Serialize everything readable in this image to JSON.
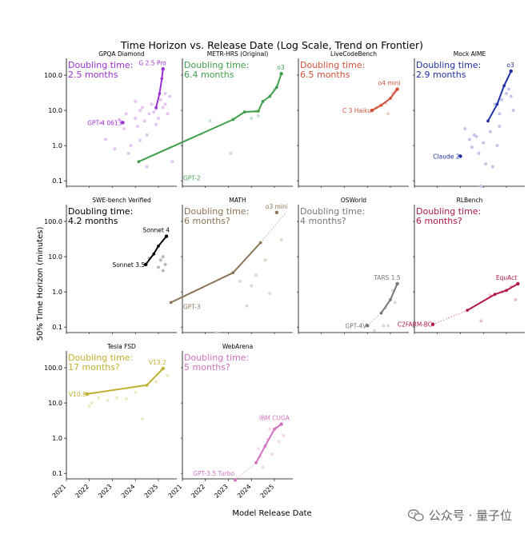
{
  "figure": {
    "title": "Time Horizon vs. Release Date (Log Scale, Trend on Frontier)",
    "xlabel": "Model Release Date",
    "ylabel": "50% Time Horizon (minutes)",
    "watermark": "公众号 · 量子位"
  },
  "chart_data": [
    {
      "type": "scatter",
      "title": "GPQA Diamond",
      "color": "#9b30d0",
      "doubling_label": "Doubling time:",
      "doubling_value": "2.5 months",
      "frontier_x": [
        2024.9,
        2025.05,
        2025.15,
        2025.2
      ],
      "frontier_y": [
        12,
        30,
        80,
        150
      ],
      "points_x": [
        2022.5,
        2022.7,
        2023.3,
        2023.5,
        2023.6,
        2023.8,
        2024.0,
        2024.1,
        2024.2,
        2024.3,
        2024.4,
        2024.5,
        2024.6,
        2024.7,
        2024.8,
        2024.9,
        2025.0,
        2025.1,
        2025.2,
        2025.3,
        2025.4,
        2025.5,
        2023.1,
        2024.5,
        2023.7,
        2024.9,
        2025.3,
        2024.2,
        2025.6,
        2024.0
      ],
      "points_y": [
        4.5,
        1.5,
        5.5,
        3.0,
        8.0,
        1.0,
        6.0,
        3.5,
        10.0,
        12.0,
        5.0,
        2.0,
        8.0,
        15.0,
        9.0,
        11.0,
        6.0,
        20.0,
        12.0,
        30.0,
        8.0,
        25.0,
        0.8,
        0.25,
        0.6,
        4.0,
        15.0,
        1.4,
        0.35,
        18.0
      ],
      "annotations": [
        {
          "text": "G 2.5 Pro",
          "x": 2025.2,
          "y": 150
        },
        {
          "text": "GPT-4 0613",
          "x": 2023.45,
          "y": 4.5
        }
      ],
      "labeled_x": [
        2025.2,
        2023.45
      ],
      "labeled_y": [
        150,
        4.5
      ]
    },
    {
      "type": "scatter",
      "title": "METR-HRS (Original)",
      "color": "#3fa04a",
      "doubling_label": "Doubling time:",
      "doubling_value": "6.4 months",
      "frontier_x": [
        2019.1,
        2023.2,
        2023.7,
        2024.3,
        2024.5,
        2024.8,
        2025.1,
        2025.3
      ],
      "frontier_y": [
        0.35,
        5.5,
        9.0,
        9.5,
        18,
        25,
        45,
        110
      ],
      "points_x": [
        2023.2,
        2023.7,
        2024.0,
        2024.2,
        2024.5,
        2024.8,
        2025.0,
        2025.1,
        2025.3,
        2023.1,
        2024.3,
        2022.2
      ],
      "points_y": [
        5.5,
        9.0,
        6.0,
        9.5,
        18.0,
        25.0,
        40.0,
        45.0,
        110.0,
        0.6,
        7.0,
        5.0
      ],
      "annotations": [
        {
          "text": "o3",
          "x": 2025.3,
          "y": 110
        },
        {
          "text": "GPT-2",
          "x": 2019.1,
          "y": 0.08
        }
      ],
      "labeled_x": [
        2025.3
      ],
      "labeled_y": [
        110
      ]
    },
    {
      "type": "scatter",
      "title": "LiveCodeBench",
      "color": "#d0503a",
      "doubling_label": "Doubling time:",
      "doubling_value": "6.5 months",
      "frontier_x": [
        2024.2,
        2024.6,
        2025.0,
        2025.3
      ],
      "frontier_y": [
        10,
        14,
        22,
        40
      ],
      "points_x": [
        2024.2,
        2024.4,
        2024.6,
        2024.8,
        2025.0,
        2025.1,
        2025.2,
        2025.3,
        2024.9
      ],
      "points_y": [
        10.0,
        12.0,
        14.0,
        16.0,
        22.0,
        30.0,
        35.0,
        40.0,
        8.0
      ],
      "annotations": [
        {
          "text": "o4 mini",
          "x": 2025.3,
          "y": 40
        },
        {
          "text": "C 3 Haiku",
          "x": 2024.2,
          "y": 10
        }
      ],
      "labeled_x": [
        2025.3,
        2024.2
      ],
      "labeled_y": [
        40,
        10
      ]
    },
    {
      "type": "scatter",
      "title": "Mock AIME",
      "color": "#2030a8",
      "doubling_label": "Doubling time:",
      "doubling_value": "2.9 months",
      "frontier_x": [
        2024.2,
        2024.6,
        2024.9,
        2025.2
      ],
      "frontier_y": [
        5,
        15,
        50,
        130
      ],
      "points_x": [
        2023.0,
        2023.2,
        2023.4,
        2023.5,
        2023.6,
        2023.8,
        2024.0,
        2024.2,
        2024.3,
        2024.5,
        2024.6,
        2024.7,
        2024.8,
        2024.9,
        2025.0,
        2025.1,
        2025.2,
        2025.3,
        2024.1,
        2024.4,
        2023.9,
        2025.2,
        2024.7,
        2023.7
      ],
      "points_y": [
        0.5,
        3.0,
        1.5,
        0.9,
        2.0,
        0.6,
        1.2,
        5.0,
        2.5,
        15.0,
        1.0,
        8.0,
        20.0,
        50.0,
        30.0,
        40.0,
        130.0,
        10.0,
        0.3,
        0.25,
        0.07,
        25.0,
        3.5,
        1.8
      ],
      "annotations": [
        {
          "text": "o3",
          "x": 2025.2,
          "y": 130
        },
        {
          "text": "Claude 2",
          "x": 2023.0,
          "y": 0.5
        }
      ],
      "labeled_x": [
        2025.2,
        2023.0
      ],
      "labeled_y": [
        130,
        0.5
      ]
    },
    {
      "type": "scatter",
      "title": "SWE-bench Verified",
      "color": "#000000",
      "doubling_label": "Doubling time:",
      "doubling_value": "4.2 months",
      "frontier_x": [
        2024.45,
        2024.8,
        2025.0,
        2025.35
      ],
      "frontier_y": [
        6,
        12,
        20,
        38
      ],
      "points_x": [
        2024.45,
        2024.6,
        2024.8,
        2025.0,
        2025.1,
        2025.2,
        2025.35,
        2025.3,
        2025.2,
        2025.0
      ],
      "points_y": [
        6.0,
        9.0,
        12.0,
        20.0,
        8.0,
        10.0,
        38.0,
        6.0,
        4.0,
        5.0
      ],
      "annotations": [
        {
          "text": "Sonnet 4",
          "x": 2025.35,
          "y": 38
        },
        {
          "text": "Sonnet 3.5",
          "x": 2024.45,
          "y": 6
        }
      ],
      "labeled_x": [
        2025.35,
        2024.45
      ],
      "labeled_y": [
        38,
        6
      ]
    },
    {
      "type": "scatter",
      "title": "MATH",
      "color": "#8b7355",
      "doubling_label": "Doubling time:",
      "doubling_value": "6 months?",
      "frontier_x": [
        2020.5,
        2023.2,
        2024.4
      ],
      "frontier_y": [
        0.5,
        3.5,
        25
      ],
      "dotted_x": [
        2024.4,
        2025.5
      ],
      "dotted_y": [
        25,
        180
      ],
      "points_x": [
        2020.5,
        2023.2,
        2024.4,
        2025.1,
        2023.5,
        2024.0,
        2024.6,
        2025.3,
        2024.8,
        2022.5,
        2024.2,
        2023.8
      ],
      "points_y": [
        0.5,
        3.5,
        25.0,
        180.0,
        2.0,
        1.5,
        8.0,
        30.0,
        0.9,
        0.07,
        3.0,
        0.4
      ],
      "annotations": [
        {
          "text": "o3 mini",
          "x": 2025.1,
          "y": 180
        },
        {
          "text": "GPT-3",
          "x": 2020.4,
          "y": 0.25
        }
      ],
      "labeled_x": [
        2025.1
      ],
      "labeled_y": [
        180
      ]
    },
    {
      "type": "scatter",
      "title": "OSWorld",
      "color": "#777777",
      "doubling_label": "Doubling time:",
      "doubling_value": "4 months?",
      "frontier_x": [
        2024.6,
        2025.0,
        2025.3
      ],
      "frontier_y": [
        0.25,
        0.6,
        1.7
      ],
      "dotted_x": [
        2024.0,
        2024.6
      ],
      "dotted_y": [
        0.11,
        0.25
      ],
      "points_x": [
        2024.0,
        2024.6,
        2024.8,
        2025.0,
        2025.1,
        2025.3,
        2024.3,
        2024.7,
        2025.2,
        2024.9
      ],
      "points_y": [
        0.11,
        0.25,
        0.35,
        0.6,
        1.1,
        1.7,
        0.08,
        0.11,
        0.5,
        0.11
      ],
      "annotations": [
        {
          "text": "TARS 1.5",
          "x": 2025.3,
          "y": 1.7
        },
        {
          "text": "GPT-4V",
          "x": 2024.0,
          "y": 0.11
        }
      ],
      "labeled_x": [
        2025.3,
        2024.0
      ],
      "labeled_y": [
        1.7,
        0.11
      ]
    },
    {
      "type": "scatter",
      "title": "RLBench",
      "color": "#b01848",
      "doubling_label": "Doubling time:",
      "doubling_value": "6 months?",
      "frontier_x": [
        2023.3,
        2024.5,
        2025.0,
        2025.5
      ],
      "frontier_y": [
        0.3,
        0.85,
        1.1,
        1.7
      ],
      "dotted_x": [
        2021.8,
        2023.3
      ],
      "dotted_y": [
        0.12,
        0.3
      ],
      "points_x": [
        2021.8,
        2023.3,
        2023.9,
        2024.3,
        2024.5,
        2024.8,
        2025.0,
        2025.2,
        2025.5,
        2025.4
      ],
      "points_y": [
        0.12,
        0.3,
        0.15,
        0.8,
        0.85,
        1.0,
        1.1,
        1.4,
        1.7,
        0.6
      ],
      "annotations": [
        {
          "text": "EquAct",
          "x": 2025.0,
          "y": 1.7
        },
        {
          "text": "C2FARM-BC",
          "x": 2021.8,
          "y": 0.12
        }
      ],
      "labeled_x": [
        2025.5,
        2021.8
      ],
      "labeled_y": [
        1.7,
        0.12
      ]
    },
    {
      "type": "scatter",
      "title": "Tesla FSD",
      "color": "#c0b030",
      "doubling_label": "Doubling time:",
      "doubling_value": "17 months?",
      "frontier_x": [
        2021.9,
        2024.5,
        2025.2
      ],
      "frontier_y": [
        18,
        32,
        95
      ],
      "points_x": [
        2021.9,
        2022.1,
        2022.4,
        2022.8,
        2023.2,
        2023.6,
        2024.0,
        2024.5,
        2024.9,
        2025.2,
        2025.4,
        2022.0,
        2024.3
      ],
      "points_y": [
        18.0,
        10.0,
        14.0,
        12.0,
        14.0,
        13.0,
        20.0,
        32.0,
        40.0,
        95.0,
        60.0,
        8.0,
        3.5
      ],
      "annotations": [
        {
          "text": "V13.2",
          "x": 2025.2,
          "y": 95
        },
        {
          "text": "V10.8",
          "x": 2021.9,
          "y": 18
        }
      ],
      "labeled_x": [
        2025.2,
        2021.9
      ],
      "labeled_y": [
        95,
        18
      ]
    },
    {
      "type": "scatter",
      "title": "WebArena",
      "color": "#d070c0",
      "doubling_label": "Doubling time:",
      "doubling_value": "5 months?",
      "frontier_x": [
        2024.2,
        2024.6,
        2025.0,
        2025.3
      ],
      "frontier_y": [
        0.2,
        0.6,
        1.8,
        2.5
      ],
      "dotted_x": [
        2023.3,
        2024.2
      ],
      "dotted_y": [
        0.065,
        0.2
      ],
      "points_x": [
        2023.3,
        2024.2,
        2024.4,
        2024.6,
        2024.7,
        2024.8,
        2025.0,
        2025.1,
        2025.3,
        2025.4,
        2024.5,
        2024.9,
        2025.2,
        2024.3
      ],
      "points_y": [
        0.065,
        0.2,
        0.3,
        0.6,
        0.9,
        1.8,
        1.8,
        2.0,
        2.5,
        1.2,
        0.15,
        0.35,
        0.8,
        0.5
      ],
      "annotations": [
        {
          "text": "IBM CUGA",
          "x": 2025.0,
          "y": 2.5
        },
        {
          "text": "GPT-3.5 Turbo",
          "x": 2023.3,
          "y": 0.1
        }
      ],
      "labeled_x": [
        2025.3,
        2023.3
      ],
      "labeled_y": [
        2.5,
        0.065
      ]
    }
  ],
  "axes": {
    "xlim": [
      2021,
      2025.8
    ],
    "ylim": [
      0.07,
      300
    ],
    "xticks": [
      2021,
      2022,
      2023,
      2024,
      2025
    ],
    "yticks": [
      0.1,
      1.0,
      10.0,
      100.0
    ],
    "ytick_labels": [
      "0.1",
      "1.0",
      "10.0",
      "100.0"
    ]
  }
}
